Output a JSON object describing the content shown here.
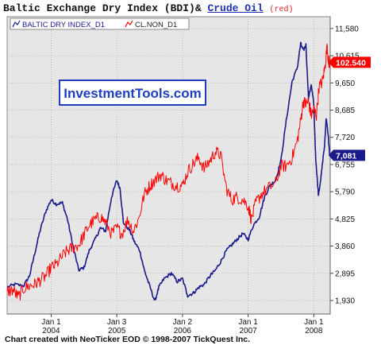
{
  "header": {
    "title_part1": "Baltic Exchange Dry Index (BDI)&",
    "title_link": "Crude Oil",
    "title_note": "(red)"
  },
  "watermark": "InvestmentTools.com",
  "footer": "Chart created with NeoTicker EOD © 1998-2007 TickQuest Inc.",
  "colors": {
    "bdi": "#1a1a8c",
    "oil": "#ff0000",
    "plot_bg": "#e6e6e6",
    "grid": "#b4b4b4",
    "watermark_text": "#1f3fbf"
  },
  "chart_data": {
    "type": "line",
    "title": "Baltic Exchange Dry Index (BDI)& Crude Oil (red)",
    "y_axis_ticks": [
      "11,580",
      "10,615",
      "9,650",
      "8,685",
      "7,720",
      "6,755",
      "5,790",
      "4,825",
      "3,860",
      "2,895",
      "1,930"
    ],
    "ylim": [
      1450,
      12000
    ],
    "xlim": [
      2003.33,
      2008.25
    ],
    "x_ticks": [
      {
        "x": 2004.0,
        "line1": "Jan 1",
        "line2": "2004"
      },
      {
        "x": 2005.0,
        "line1": "Jan 3",
        "line2": "2005"
      },
      {
        "x": 2006.0,
        "line1": "Jan 2",
        "line2": "2006"
      },
      {
        "x": 2007.0,
        "line1": "Jan 1",
        "line2": "2007"
      },
      {
        "x": 2008.0,
        "line1": "Jan 1",
        "line2": "2008"
      }
    ],
    "legend": [
      {
        "name": "BALTIC DRY INDEX_D1",
        "series": "bdi"
      },
      {
        "name": "CL.NON_D1",
        "series": "oil"
      }
    ],
    "last_values": [
      {
        "series": "bdi",
        "label": "7,081",
        "y": 7081
      },
      {
        "series": "oil",
        "label": "102.540",
        "y": 10380
      }
    ],
    "grid": true,
    "series": [
      {
        "key": "bdi",
        "name": "BALTIC DRY INDEX_D1",
        "points": [
          [
            2003.33,
            2400
          ],
          [
            2003.45,
            2500
          ],
          [
            2003.58,
            2450
          ],
          [
            2003.67,
            2800
          ],
          [
            2003.75,
            3600
          ],
          [
            2003.83,
            4400
          ],
          [
            2003.92,
            5100
          ],
          [
            2004.0,
            5500
          ],
          [
            2004.08,
            5350
          ],
          [
            2004.17,
            5400
          ],
          [
            2004.25,
            4800
          ],
          [
            2004.33,
            3900
          ],
          [
            2004.42,
            3000
          ],
          [
            2004.5,
            3100
          ],
          [
            2004.58,
            3700
          ],
          [
            2004.67,
            4100
          ],
          [
            2004.75,
            4500
          ],
          [
            2004.83,
            4400
          ],
          [
            2004.92,
            5600
          ],
          [
            2005.0,
            6200
          ],
          [
            2005.05,
            5900
          ],
          [
            2005.1,
            4700
          ],
          [
            2005.2,
            4400
          ],
          [
            2005.27,
            4000
          ],
          [
            2005.35,
            3700
          ],
          [
            2005.42,
            3000
          ],
          [
            2005.5,
            2450
          ],
          [
            2005.58,
            1900
          ],
          [
            2005.64,
            2400
          ],
          [
            2005.72,
            2700
          ],
          [
            2005.83,
            2900
          ],
          [
            2005.92,
            2600
          ],
          [
            2006.0,
            2700
          ],
          [
            2006.08,
            2100
          ],
          [
            2006.17,
            2200
          ],
          [
            2006.25,
            2400
          ],
          [
            2006.33,
            2500
          ],
          [
            2006.42,
            2800
          ],
          [
            2006.5,
            3000
          ],
          [
            2006.58,
            3300
          ],
          [
            2006.67,
            3700
          ],
          [
            2006.75,
            3900
          ],
          [
            2006.83,
            4100
          ],
          [
            2006.92,
            4300
          ],
          [
            2007.0,
            4100
          ],
          [
            2007.08,
            4600
          ],
          [
            2007.17,
            4900
          ],
          [
            2007.25,
            5600
          ],
          [
            2007.33,
            6000
          ],
          [
            2007.42,
            6200
          ],
          [
            2007.5,
            6900
          ],
          [
            2007.58,
            8300
          ],
          [
            2007.67,
            9700
          ],
          [
            2007.75,
            10200
          ],
          [
            2007.8,
            11050
          ],
          [
            2007.84,
            10800
          ],
          [
            2007.88,
            11000
          ],
          [
            2007.92,
            9100
          ],
          [
            2007.96,
            9600
          ],
          [
            2008.0,
            8900
          ],
          [
            2008.03,
            6900
          ],
          [
            2008.07,
            5700
          ],
          [
            2008.1,
            6100
          ],
          [
            2008.13,
            6800
          ],
          [
            2008.16,
            7300
          ],
          [
            2008.19,
            8400
          ],
          [
            2008.22,
            7800
          ],
          [
            2008.24,
            7081
          ]
        ]
      },
      {
        "key": "oil",
        "name": "CL.NON_D1",
        "points": [
          [
            2003.33,
            2250
          ],
          [
            2003.42,
            2300
          ],
          [
            2003.5,
            2050
          ],
          [
            2003.58,
            2350
          ],
          [
            2003.67,
            2450
          ],
          [
            2003.75,
            2500
          ],
          [
            2003.83,
            2650
          ],
          [
            2003.92,
            2800
          ],
          [
            2004.0,
            3100
          ],
          [
            2004.08,
            3200
          ],
          [
            2004.17,
            3500
          ],
          [
            2004.25,
            3700
          ],
          [
            2004.33,
            3800
          ],
          [
            2004.42,
            3900
          ],
          [
            2004.5,
            4250
          ],
          [
            2004.58,
            4600
          ],
          [
            2004.67,
            4800
          ],
          [
            2004.75,
            4900
          ],
          [
            2004.83,
            4700
          ],
          [
            2004.92,
            4300
          ],
          [
            2005.0,
            4500
          ],
          [
            2005.08,
            4300
          ],
          [
            2005.17,
            4800
          ],
          [
            2005.25,
            4400
          ],
          [
            2005.33,
            4800
          ],
          [
            2005.42,
            5700
          ],
          [
            2005.5,
            6000
          ],
          [
            2005.58,
            6200
          ],
          [
            2005.67,
            6400
          ],
          [
            2005.75,
            6200
          ],
          [
            2005.83,
            6100
          ],
          [
            2005.92,
            6000
          ],
          [
            2006.0,
            6000
          ],
          [
            2006.08,
            6500
          ],
          [
            2006.17,
            6800
          ],
          [
            2006.25,
            7000
          ],
          [
            2006.33,
            6600
          ],
          [
            2006.42,
            6900
          ],
          [
            2006.5,
            7200
          ],
          [
            2006.58,
            7100
          ],
          [
            2006.67,
            5900
          ],
          [
            2006.75,
            5500
          ],
          [
            2006.83,
            5600
          ],
          [
            2006.92,
            5500
          ],
          [
            2007.0,
            5300
          ],
          [
            2007.05,
            4800
          ],
          [
            2007.12,
            5400
          ],
          [
            2007.2,
            5700
          ],
          [
            2007.3,
            5900
          ],
          [
            2007.42,
            6100
          ],
          [
            2007.5,
            6700
          ],
          [
            2007.58,
            6700
          ],
          [
            2007.67,
            7000
          ],
          [
            2007.75,
            7600
          ],
          [
            2007.8,
            8300
          ],
          [
            2007.84,
            9000
          ],
          [
            2007.88,
            8900
          ],
          [
            2007.92,
            9000
          ],
          [
            2007.96,
            8500
          ],
          [
            2008.0,
            8700
          ],
          [
            2008.04,
            8500
          ],
          [
            2008.08,
            9500
          ],
          [
            2008.13,
            9700
          ],
          [
            2008.17,
            10200
          ],
          [
            2008.2,
            10900
          ],
          [
            2008.23,
            10400
          ],
          [
            2008.245,
            10380
          ]
        ]
      }
    ]
  }
}
